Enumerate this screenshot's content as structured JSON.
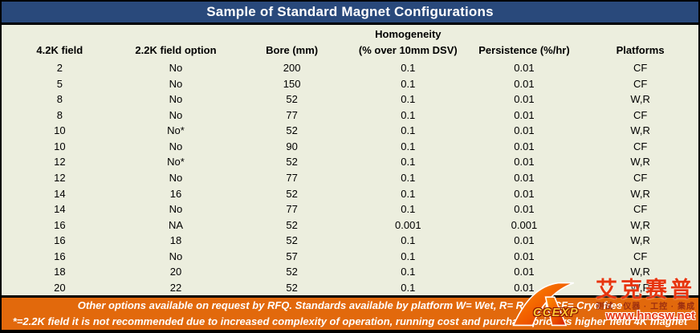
{
  "title": "Sample of Standard Magnet Configurations",
  "table": {
    "header_group": "Homogeneity",
    "columns": [
      "4.2K field",
      "2.2K field option",
      "Bore (mm)",
      "(% over 10mm DSV)",
      "Persistence (%/hr)",
      "Platforms"
    ],
    "rows": [
      [
        "2",
        "No",
        "200",
        "0.1",
        "0.01",
        "CF"
      ],
      [
        "5",
        "No",
        "150",
        "0.1",
        "0.01",
        "CF"
      ],
      [
        "8",
        "No",
        "52",
        "0.1",
        "0.01",
        "W,R"
      ],
      [
        "8",
        "No",
        "77",
        "0.1",
        "0.01",
        "CF"
      ],
      [
        "10",
        "No*",
        "52",
        "0.1",
        "0.01",
        "W,R"
      ],
      [
        "10",
        "No",
        "90",
        "0.1",
        "0.01",
        "CF"
      ],
      [
        "12",
        "No*",
        "52",
        "0.1",
        "0.01",
        "W,R"
      ],
      [
        "12",
        "No",
        "77",
        "0.1",
        "0.01",
        "CF"
      ],
      [
        "14",
        "16",
        "52",
        "0.1",
        "0.01",
        "W,R"
      ],
      [
        "14",
        "No",
        "77",
        "0.1",
        "0.01",
        "CF"
      ],
      [
        "16",
        "NA",
        "52",
        "0.001",
        "0.001",
        "W,R"
      ],
      [
        "16",
        "18",
        "52",
        "0.1",
        "0.01",
        "W,R"
      ],
      [
        "16",
        "No",
        "57",
        "0.1",
        "0.01",
        "CF"
      ],
      [
        "18",
        "20",
        "52",
        "0.1",
        "0.01",
        "W,R"
      ],
      [
        "20",
        "22",
        "52",
        "0.1",
        "0.01",
        "W,R"
      ]
    ]
  },
  "footer": {
    "line1": "Other options available on request by RFQ. Standards available by platform W= Wet, R= Recon, CF= Cryo free",
    "line2": "*=2.2K field it is not recommended due to increased complexity of operation, running cost and purchase price vs higher field 4K magnet"
  },
  "watermark": {
    "logo_text": "CCEXP",
    "chinese": "艾克赛普",
    "tagline": "测试 · 仪器 · 工控 · 集成",
    "url": "www.hncsw.net"
  },
  "colors": {
    "title_bg": "#29497B",
    "body_bg": "#ECEEDE",
    "footer_bg": "#E2690C",
    "watermark_red": "#E7350E",
    "frame_border": "#000000"
  }
}
